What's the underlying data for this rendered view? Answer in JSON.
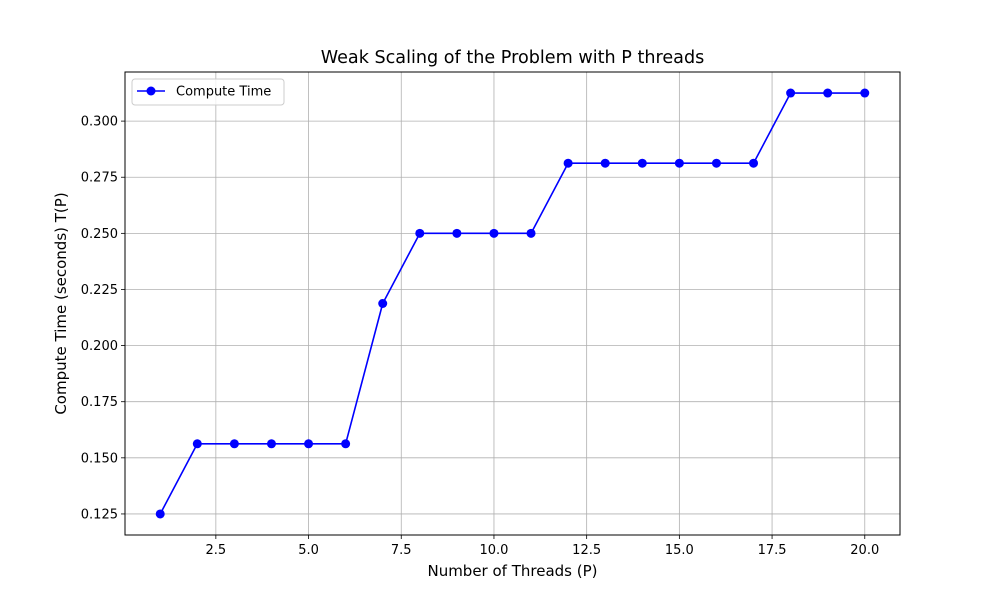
{
  "chart_data": {
    "type": "line",
    "title": "Weak Scaling of the Problem with P threads",
    "xlabel": "Number of Threads (P)",
    "ylabel": "Compute Time (seconds) T(P)",
    "xlim": [
      0.05,
      20.95
    ],
    "ylim": [
      0.11562,
      0.32188
    ],
    "xticks": [
      2.5,
      5.0,
      7.5,
      10.0,
      12.5,
      15.0,
      17.5,
      20.0
    ],
    "xtick_labels": [
      "2.5",
      "5.0",
      "7.5",
      "10.0",
      "12.5",
      "15.0",
      "17.5",
      "20.0"
    ],
    "yticks": [
      0.125,
      0.15,
      0.175,
      0.2,
      0.225,
      0.25,
      0.275,
      0.3
    ],
    "ytick_labels": [
      "0.125",
      "0.150",
      "0.175",
      "0.200",
      "0.225",
      "0.250",
      "0.275",
      "0.300"
    ],
    "grid": true,
    "legend_position": "upper left",
    "series": [
      {
        "name": "Compute Time",
        "color": "#0000ff",
        "marker": "circle",
        "x": [
          1,
          2,
          3,
          4,
          5,
          6,
          7,
          8,
          9,
          10,
          11,
          12,
          13,
          14,
          15,
          16,
          17,
          18,
          19,
          20
        ],
        "y": [
          0.125,
          0.15625,
          0.15625,
          0.15625,
          0.15625,
          0.15625,
          0.21875,
          0.25,
          0.25,
          0.25,
          0.25,
          0.28125,
          0.28125,
          0.28125,
          0.28125,
          0.28125,
          0.28125,
          0.3125,
          0.3125,
          0.3125
        ]
      }
    ]
  }
}
